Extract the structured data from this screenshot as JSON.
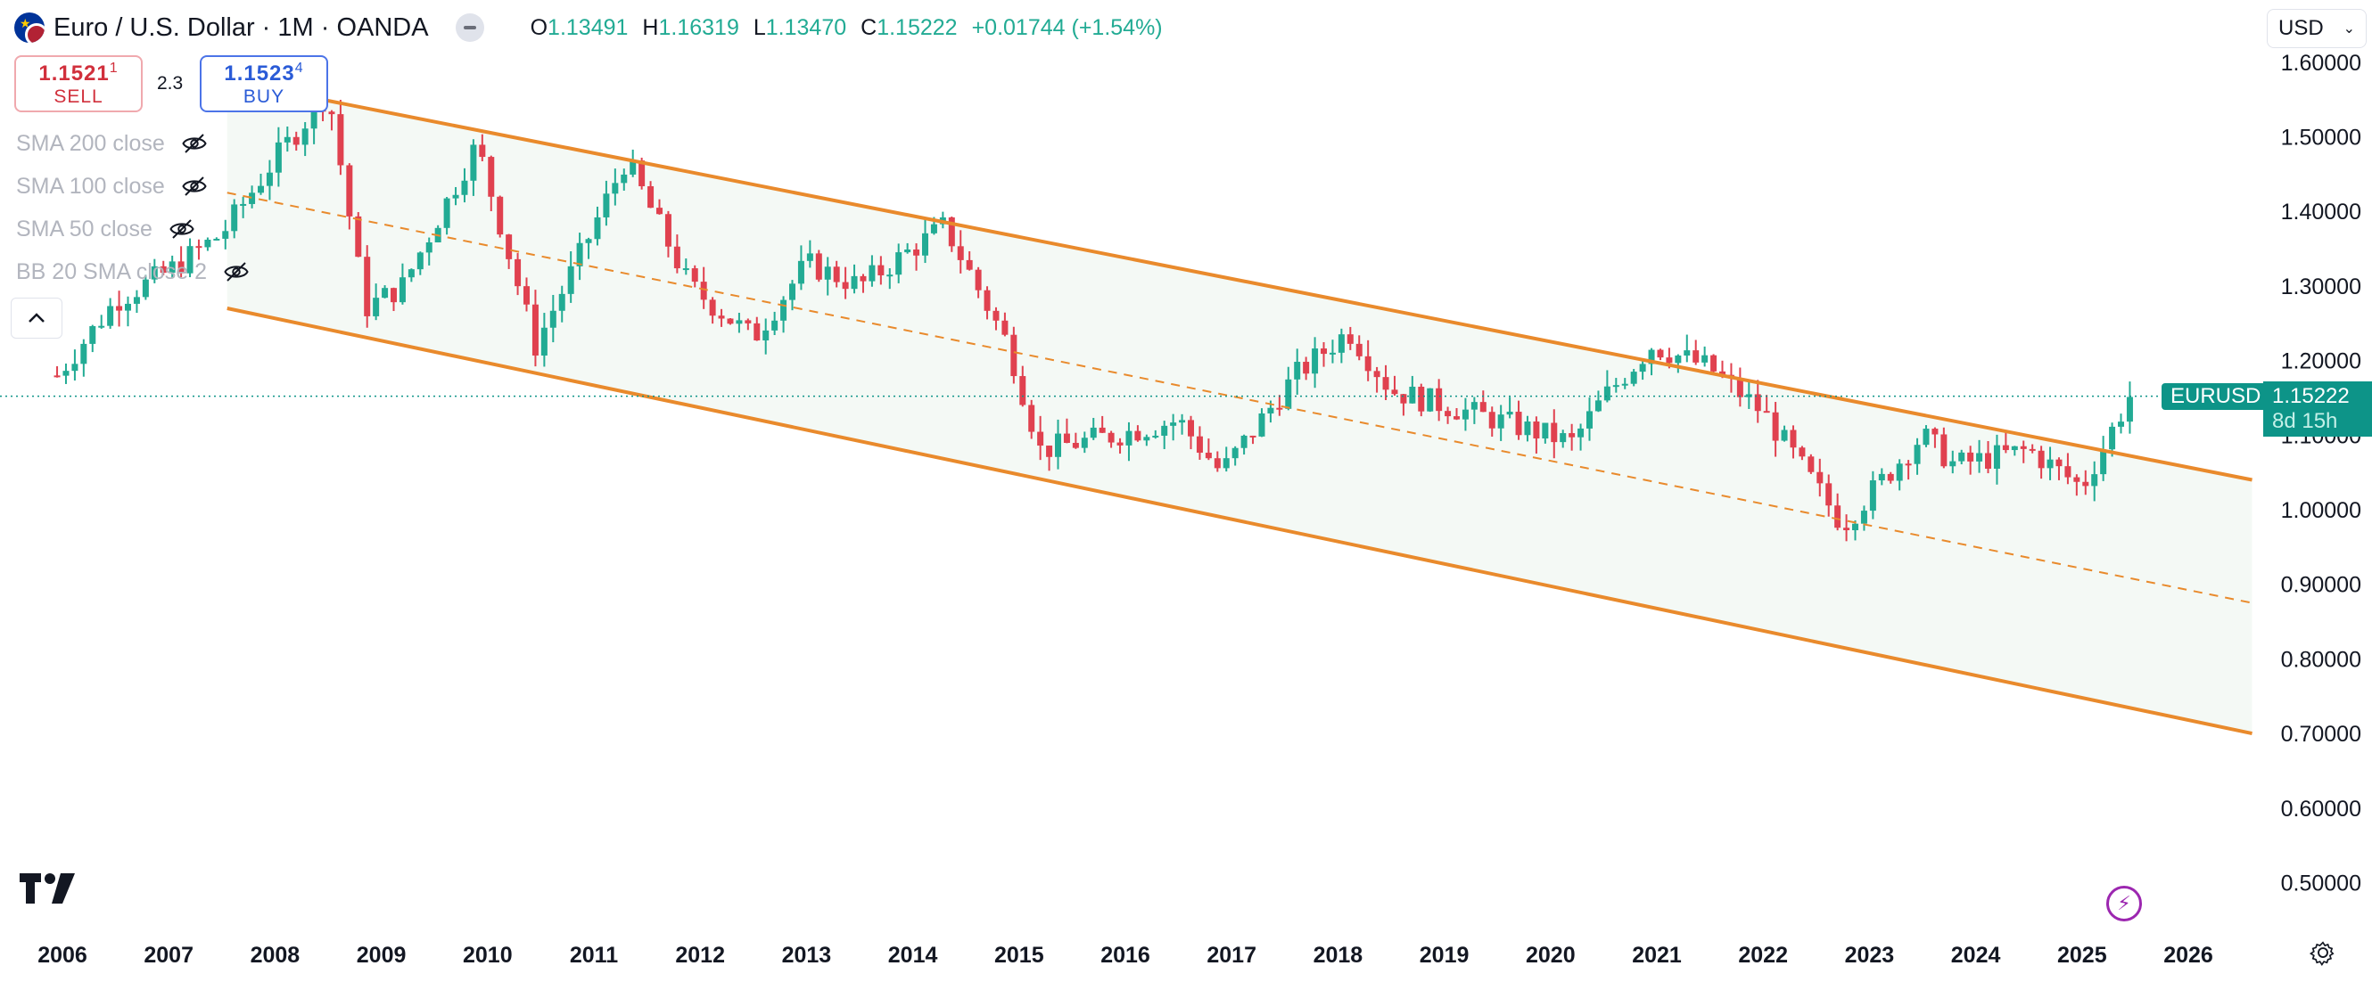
{
  "header": {
    "title": "Euro / U.S. Dollar · 1M · OANDA",
    "ohlc": [
      {
        "label": "O",
        "value": "1.13491"
      },
      {
        "label": "H",
        "value": "1.16319"
      },
      {
        "label": "L",
        "value": "1.13470"
      },
      {
        "label": "C",
        "value": "1.15222"
      }
    ],
    "change": "+0.01744 (+1.54%)"
  },
  "currency": {
    "label": "USD"
  },
  "trade": {
    "sell_price": "1.1521",
    "sell_pip": "1",
    "sell_label": "SELL",
    "spread": "2.3",
    "buy_price": "1.1523",
    "buy_pip": "4",
    "buy_label": "BUY"
  },
  "indicators": [
    "SMA 200 close",
    "SMA 100 close",
    "SMA 50 close",
    "BB 20 SMA close 2"
  ],
  "last_price": {
    "symbol": "EURUSD",
    "price": "1.15222",
    "countdown": "8d 15h"
  },
  "colors": {
    "up": "#22ab94",
    "down": "#e0414f",
    "channel": "#e98a2c",
    "channel_fill": "#f4f9f5",
    "accent": "#0d9488"
  },
  "chart_data": {
    "type": "candlestick",
    "title": "Euro / U.S. Dollar · 1M · OANDA",
    "x_ticks": [
      "2006",
      "2007",
      "2008",
      "2009",
      "2010",
      "2011",
      "2012",
      "2013",
      "2014",
      "2015",
      "2016",
      "2017",
      "2018",
      "2019",
      "2020",
      "2021",
      "2022",
      "2023",
      "2024",
      "2025",
      "2026"
    ],
    "y_ticks": [
      "0.50000",
      "0.60000",
      "0.70000",
      "0.80000",
      "0.90000",
      "1.00000",
      "1.10000",
      "1.20000",
      "1.30000",
      "1.40000",
      "1.50000",
      "1.60000"
    ],
    "ylim": [
      0.45,
      1.62
    ],
    "xlim": [
      2006.0,
      2026.9
    ],
    "yearly_path": [
      {
        "t": 2005.95,
        "p": 1.18
      },
      {
        "t": 2006.5,
        "p": 1.28
      },
      {
        "t": 2007.0,
        "p": 1.32
      },
      {
        "t": 2007.5,
        "p": 1.37
      },
      {
        "t": 2008.0,
        "p": 1.47
      },
      {
        "t": 2008.5,
        "p": 1.56
      },
      {
        "t": 2008.85,
        "p": 1.27
      },
      {
        "t": 2009.2,
        "p": 1.3
      },
      {
        "t": 2009.9,
        "p": 1.49
      },
      {
        "t": 2010.45,
        "p": 1.22
      },
      {
        "t": 2010.9,
        "p": 1.35
      },
      {
        "t": 2011.3,
        "p": 1.47
      },
      {
        "t": 2011.9,
        "p": 1.3
      },
      {
        "t": 2012.5,
        "p": 1.23
      },
      {
        "t": 2013.0,
        "p": 1.33
      },
      {
        "t": 2013.5,
        "p": 1.3
      },
      {
        "t": 2014.3,
        "p": 1.38
      },
      {
        "t": 2014.9,
        "p": 1.22
      },
      {
        "t": 2015.2,
        "p": 1.08
      },
      {
        "t": 2015.9,
        "p": 1.1
      },
      {
        "t": 2016.5,
        "p": 1.12
      },
      {
        "t": 2016.9,
        "p": 1.05
      },
      {
        "t": 2017.6,
        "p": 1.18
      },
      {
        "t": 2018.1,
        "p": 1.24
      },
      {
        "t": 2018.5,
        "p": 1.16
      },
      {
        "t": 2019.5,
        "p": 1.12
      },
      {
        "t": 2020.2,
        "p": 1.09
      },
      {
        "t": 2020.5,
        "p": 1.15
      },
      {
        "t": 2020.95,
        "p": 1.22
      },
      {
        "t": 2021.5,
        "p": 1.19
      },
      {
        "t": 2022.0,
        "p": 1.13
      },
      {
        "t": 2022.75,
        "p": 0.98
      },
      {
        "t": 2023.5,
        "p": 1.1
      },
      {
        "t": 2023.8,
        "p": 1.06
      },
      {
        "t": 2024.5,
        "p": 1.08
      },
      {
        "t": 2025.0,
        "p": 1.03
      },
      {
        "t": 2025.45,
        "p": 1.15222
      }
    ],
    "channel": {
      "upper": [
        {
          "t": 2007.55,
          "p": 1.575
        },
        {
          "t": 2026.6,
          "p": 1.04
        }
      ],
      "middle": [
        {
          "t": 2007.55,
          "p": 1.425
        },
        {
          "t": 2026.6,
          "p": 0.875
        }
      ],
      "lower": [
        {
          "t": 2007.55,
          "p": 1.27
        },
        {
          "t": 2026.6,
          "p": 0.7
        }
      ]
    },
    "last_close": 1.15222
  }
}
